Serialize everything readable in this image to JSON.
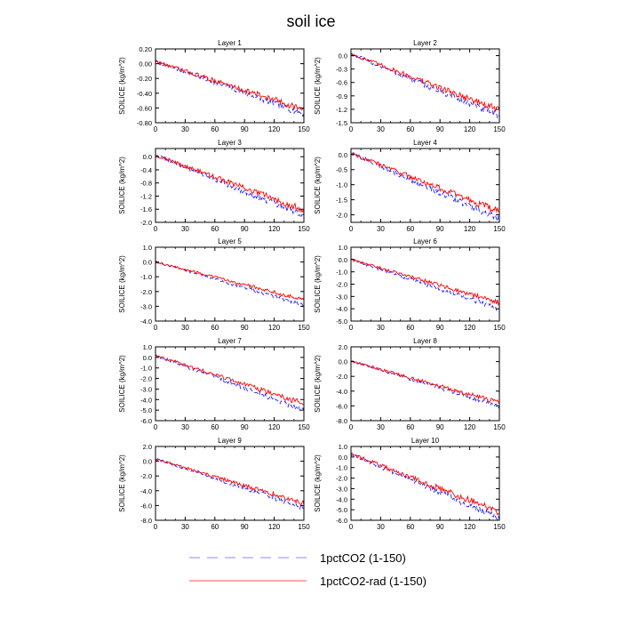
{
  "figure": {
    "title": "soil ice",
    "legend": [
      {
        "label": "1pctCO2 (1-150)",
        "color": "#8888ff",
        "dash": true
      },
      {
        "label": "1pctCO2-rad (1-150)",
        "color": "#ff5555",
        "dash": false
      }
    ]
  },
  "chart_data": [
    {
      "type": "line",
      "title": "Layer 1",
      "ylabel": "SOILICE  (kg/m^2)",
      "xlim": [
        0,
        150
      ],
      "ylim": [
        -0.8,
        0.2
      ],
      "xticks": [
        0,
        30,
        60,
        90,
        120,
        150
      ],
      "yticks": [
        -0.8,
        -0.6,
        -0.4,
        -0.2,
        0.0,
        0.2
      ],
      "decimals": 2,
      "series": [
        {
          "name": "1pctCO2 (1-150)",
          "color": "#2222ff",
          "dash": true,
          "start": 0.03,
          "end": -0.68,
          "noise": 0.035
        },
        {
          "name": "1pctCO2-rad (1-150)",
          "color": "#ff0000",
          "dash": false,
          "start": 0.03,
          "end": -0.62,
          "noise": 0.035
        }
      ]
    },
    {
      "type": "line",
      "title": "Layer 2",
      "ylabel": "SOILICE  (kg/m^2)",
      "xlim": [
        0,
        150
      ],
      "ylim": [
        -1.5,
        0.15
      ],
      "xticks": [
        0,
        30,
        60,
        90,
        120,
        150
      ],
      "yticks": [
        -1.5,
        -1.2,
        -0.9,
        -0.6,
        -0.3,
        0.0
      ],
      "decimals": 1,
      "series": [
        {
          "name": "1pctCO2 (1-150)",
          "color": "#2222ff",
          "dash": true,
          "start": 0.04,
          "end": -1.35,
          "noise": 0.06
        },
        {
          "name": "1pctCO2-rad (1-150)",
          "color": "#ff0000",
          "dash": false,
          "start": 0.04,
          "end": -1.22,
          "noise": 0.06
        }
      ]
    },
    {
      "type": "line",
      "title": "Layer 3",
      "ylabel": "SOILICE  (kg/m^2)",
      "xlim": [
        0,
        150
      ],
      "ylim": [
        -2.0,
        0.25
      ],
      "xticks": [
        0,
        30,
        60,
        90,
        120,
        150
      ],
      "yticks": [
        -2.0,
        -1.6,
        -1.2,
        -0.8,
        -0.4,
        0.0
      ],
      "decimals": 1,
      "series": [
        {
          "name": "1pctCO2 (1-150)",
          "color": "#2222ff",
          "dash": true,
          "start": 0.05,
          "end": -1.8,
          "noise": 0.08
        },
        {
          "name": "1pctCO2-rad (1-150)",
          "color": "#ff0000",
          "dash": false,
          "start": 0.05,
          "end": -1.62,
          "noise": 0.08
        }
      ]
    },
    {
      "type": "line",
      "title": "Layer 4",
      "ylabel": "SOILICE  (kg/m^2)",
      "xlim": [
        0,
        150
      ],
      "ylim": [
        -2.25,
        0.2
      ],
      "xticks": [
        0,
        30,
        60,
        90,
        120,
        150
      ],
      "yticks": [
        -2.0,
        -1.5,
        -1.0,
        -0.5,
        0.0
      ],
      "decimals": 1,
      "series": [
        {
          "name": "1pctCO2 (1-150)",
          "color": "#2222ff",
          "dash": true,
          "start": 0.05,
          "end": -2.15,
          "noise": 0.09
        },
        {
          "name": "1pctCO2-rad (1-150)",
          "color": "#ff0000",
          "dash": false,
          "start": 0.05,
          "end": -1.9,
          "noise": 0.09
        }
      ]
    },
    {
      "type": "line",
      "title": "Layer 5",
      "ylabel": "SOILICE  (kg/m^2)",
      "xlim": [
        0,
        150
      ],
      "ylim": [
        -4.0,
        1.0
      ],
      "xticks": [
        0,
        30,
        60,
        90,
        120,
        150
      ],
      "yticks": [
        -4.0,
        -3.0,
        -2.0,
        -1.0,
        0.0,
        1.0
      ],
      "decimals": 1,
      "series": [
        {
          "name": "1pctCO2 (1-150)",
          "color": "#2222ff",
          "dash": true,
          "start": 0.0,
          "end": -2.9,
          "noise": 0.1
        },
        {
          "name": "1pctCO2-rad (1-150)",
          "color": "#ff0000",
          "dash": false,
          "start": 0.0,
          "end": -2.55,
          "noise": 0.1
        }
      ]
    },
    {
      "type": "line",
      "title": "Layer 6",
      "ylabel": "SOILICE  (kg/m^2)",
      "xlim": [
        0,
        150
      ],
      "ylim": [
        -5.0,
        1.0
      ],
      "xticks": [
        0,
        30,
        60,
        90,
        120,
        150
      ],
      "yticks": [
        -5.0,
        -4.0,
        -3.0,
        -2.0,
        -1.0,
        0.0,
        1.0
      ],
      "decimals": 1,
      "series": [
        {
          "name": "1pctCO2 (1-150)",
          "color": "#2222ff",
          "dash": true,
          "start": 0.0,
          "end": -4.0,
          "noise": 0.15
        },
        {
          "name": "1pctCO2-rad (1-150)",
          "color": "#ff0000",
          "dash": false,
          "start": 0.0,
          "end": -3.5,
          "noise": 0.15
        }
      ]
    },
    {
      "type": "line",
      "title": "Layer 7",
      "ylabel": "SOILICE  (kg/m^2)",
      "xlim": [
        0,
        150
      ],
      "ylim": [
        -6.0,
        1.0
      ],
      "xticks": [
        0,
        30,
        60,
        90,
        120,
        150
      ],
      "yticks": [
        -6.0,
        -5.0,
        -4.0,
        -3.0,
        -2.0,
        -1.0,
        0.0,
        1.0
      ],
      "decimals": 1,
      "series": [
        {
          "name": "1pctCO2 (1-150)",
          "color": "#2222ff",
          "dash": true,
          "start": 0.2,
          "end": -5.0,
          "noise": 0.2
        },
        {
          "name": "1pctCO2-rad (1-150)",
          "color": "#ff0000",
          "dash": false,
          "start": 0.2,
          "end": -4.4,
          "noise": 0.2
        }
      ]
    },
    {
      "type": "line",
      "title": "Layer 8",
      "ylabel": "SOILICE  (kg/m^2)",
      "xlim": [
        0,
        150
      ],
      "ylim": [
        -8.0,
        2.0
      ],
      "xticks": [
        0,
        30,
        60,
        90,
        120,
        150
      ],
      "yticks": [
        -8.0,
        -6.0,
        -4.0,
        -2.0,
        0.0,
        2.0
      ],
      "decimals": 1,
      "series": [
        {
          "name": "1pctCO2 (1-150)",
          "color": "#2222ff",
          "dash": true,
          "start": 0.1,
          "end": -6.0,
          "noise": 0.25
        },
        {
          "name": "1pctCO2-rad (1-150)",
          "color": "#ff0000",
          "dash": false,
          "start": 0.1,
          "end": -5.6,
          "noise": 0.25
        }
      ]
    },
    {
      "type": "line",
      "title": "Layer 9",
      "ylabel": "SOILICE  (kg/m^2)",
      "xlim": [
        0,
        150
      ],
      "ylim": [
        -8.0,
        2.0
      ],
      "xticks": [
        0,
        30,
        60,
        90,
        120,
        150
      ],
      "yticks": [
        -8.0,
        -6.0,
        -4.0,
        -2.0,
        0.0,
        2.0
      ],
      "decimals": 1,
      "series": [
        {
          "name": "1pctCO2 (1-150)",
          "color": "#2222ff",
          "dash": true,
          "start": 0.3,
          "end": -6.3,
          "noise": 0.25
        },
        {
          "name": "1pctCO2-rad (1-150)",
          "color": "#ff0000",
          "dash": false,
          "start": 0.3,
          "end": -5.7,
          "noise": 0.25
        }
      ]
    },
    {
      "type": "line",
      "title": "Layer 10",
      "ylabel": "SOILICE  (kg/m^2)",
      "xlim": [
        0,
        150
      ],
      "ylim": [
        -6.0,
        1.0
      ],
      "xticks": [
        0,
        30,
        60,
        90,
        120,
        150
      ],
      "yticks": [
        -6.0,
        -5.0,
        -4.0,
        -3.0,
        -2.0,
        -1.0,
        0.0,
        1.0
      ],
      "decimals": 1,
      "series": [
        {
          "name": "1pctCO2 (1-150)",
          "color": "#2222ff",
          "dash": true,
          "start": 0.3,
          "end": -5.8,
          "noise": 0.25
        },
        {
          "name": "1pctCO2-rad (1-150)",
          "color": "#ff0000",
          "dash": false,
          "start": 0.3,
          "end": -5.2,
          "noise": 0.25
        }
      ]
    }
  ]
}
